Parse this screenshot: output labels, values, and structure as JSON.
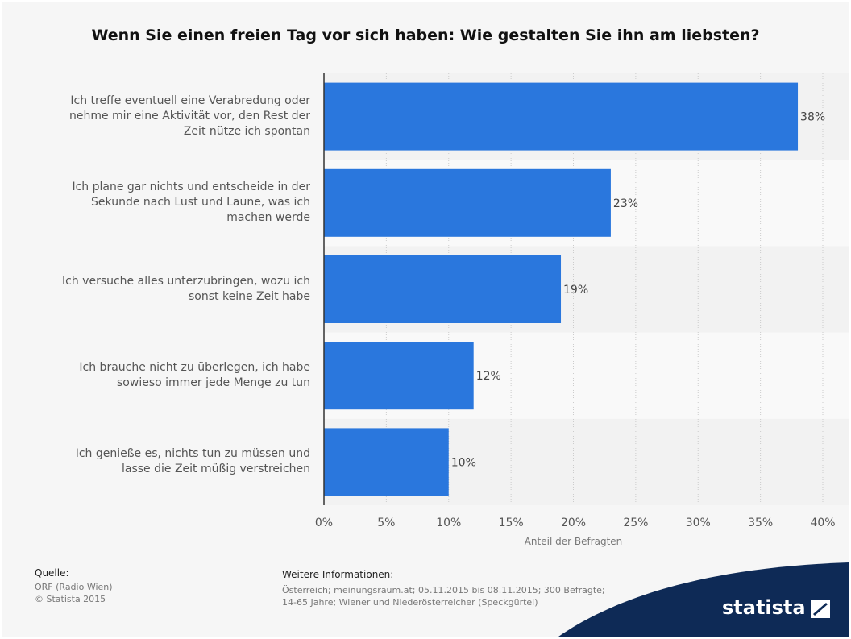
{
  "chart_data": {
    "type": "bar",
    "orientation": "horizontal",
    "title": "Wenn Sie einen freien Tag vor sich haben: Wie gestalten Sie ihn am liebsten?",
    "xlabel": "Anteil der Befragten",
    "categories": [
      [
        "Ich treffe eventuell eine Verabredung oder",
        "nehme mir eine Aktivität vor, den Rest der",
        "Zeit nütze ich spontan"
      ],
      [
        "Ich plane gar nichts und entscheide in der",
        "Sekunde nach Lust und Laune, was ich",
        "machen werde"
      ],
      [
        "Ich versuche alles unterzubringen, wozu ich",
        "sonst keine Zeit habe"
      ],
      [
        "Ich brauche nicht zu überlegen, ich habe",
        "sowieso immer jede Menge zu tun"
      ],
      [
        "Ich genieße es, nichts tun zu müssen und",
        "lasse die Zeit müßig verstreichen"
      ]
    ],
    "values": [
      38,
      23,
      19,
      12,
      10
    ],
    "data_labels": [
      "38%",
      "23%",
      "19%",
      "12%",
      "10%"
    ],
    "xlim": [
      0,
      40
    ],
    "xticks": [
      0,
      5,
      10,
      15,
      20,
      25,
      30,
      35,
      40
    ],
    "xtick_labels": [
      "0%",
      "5%",
      "10%",
      "15%",
      "20%",
      "25%",
      "30%",
      "35%",
      "40%"
    ],
    "grid": true,
    "bar_color": "#2a77dd"
  },
  "footer": {
    "source_heading": "Quelle:",
    "source_lines": [
      "ORF (Radio Wien)",
      "© Statista 2015"
    ],
    "info_heading": "Weitere Informationen:",
    "info_lines": [
      "Österreich; meinungsraum.at; 05.11.2015 bis 08.11.2015; 300 Befragte;",
      "14-65 Jahre; Wiener und Niederösterreicher (Speckgürtel)"
    ]
  },
  "logo": {
    "text": "statista",
    "color": "#0e2a56"
  }
}
